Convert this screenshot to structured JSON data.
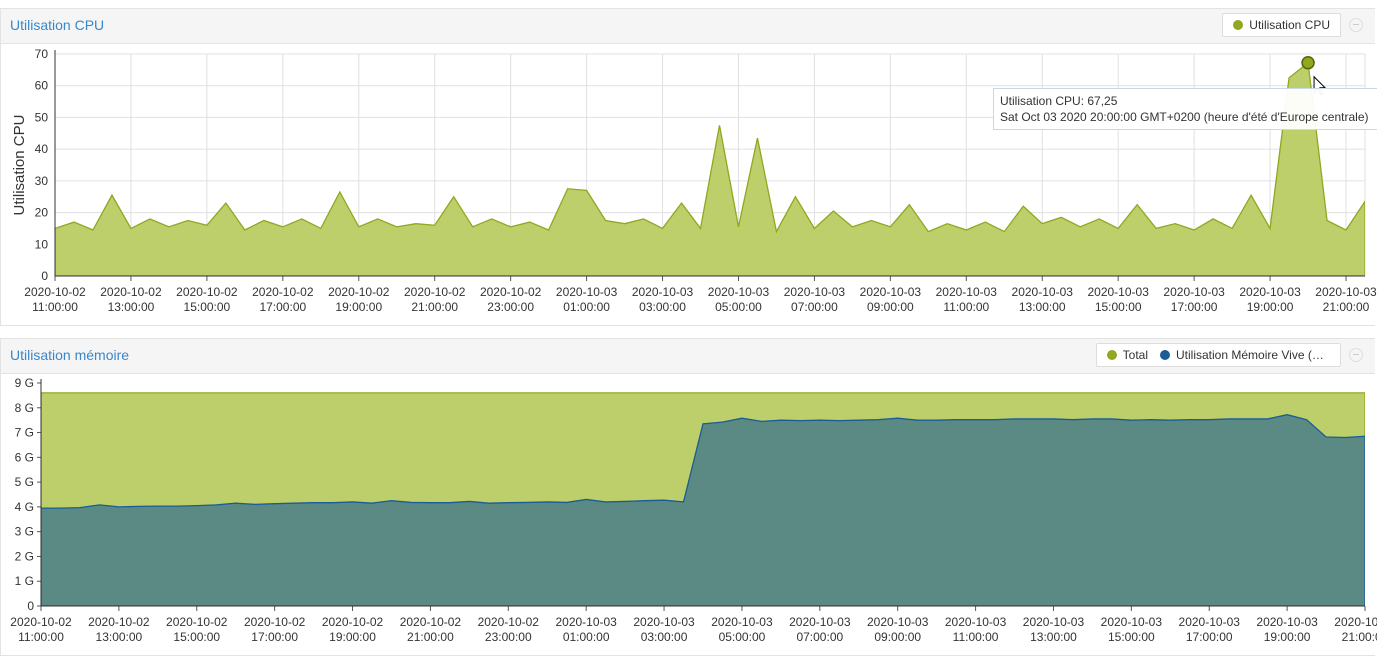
{
  "chart_data": [
    {
      "type": "area",
      "title": "Utilisation CPU",
      "y_label": "Utilisation CPU",
      "x": [
        "2020-10-02 11:00:00",
        "2020-10-02 11:30:00",
        "2020-10-02 12:00:00",
        "2020-10-02 12:30:00",
        "2020-10-02 13:00:00",
        "2020-10-02 13:30:00",
        "2020-10-02 14:00:00",
        "2020-10-02 14:30:00",
        "2020-10-02 15:00:00",
        "2020-10-02 15:30:00",
        "2020-10-02 16:00:00",
        "2020-10-02 16:30:00",
        "2020-10-02 17:00:00",
        "2020-10-02 17:30:00",
        "2020-10-02 18:00:00",
        "2020-10-02 18:30:00",
        "2020-10-02 19:00:00",
        "2020-10-02 19:30:00",
        "2020-10-02 20:00:00",
        "2020-10-02 20:30:00",
        "2020-10-02 21:00:00",
        "2020-10-02 21:30:00",
        "2020-10-02 22:00:00",
        "2020-10-02 22:30:00",
        "2020-10-02 23:00:00",
        "2020-10-02 23:30:00",
        "2020-10-03 00:00:00",
        "2020-10-03 00:30:00",
        "2020-10-03 01:00:00",
        "2020-10-03 01:30:00",
        "2020-10-03 02:00:00",
        "2020-10-03 02:30:00",
        "2020-10-03 03:00:00",
        "2020-10-03 03:30:00",
        "2020-10-03 04:00:00",
        "2020-10-03 04:30:00",
        "2020-10-03 05:00:00",
        "2020-10-03 05:30:00",
        "2020-10-03 06:00:00",
        "2020-10-03 06:30:00",
        "2020-10-03 07:00:00",
        "2020-10-03 07:30:00",
        "2020-10-03 08:00:00",
        "2020-10-03 08:30:00",
        "2020-10-03 09:00:00",
        "2020-10-03 09:30:00",
        "2020-10-03 10:00:00",
        "2020-10-03 10:30:00",
        "2020-10-03 11:00:00",
        "2020-10-03 11:30:00",
        "2020-10-03 12:00:00",
        "2020-10-03 12:30:00",
        "2020-10-03 13:00:00",
        "2020-10-03 13:30:00",
        "2020-10-03 14:00:00",
        "2020-10-03 14:30:00",
        "2020-10-03 15:00:00",
        "2020-10-03 15:30:00",
        "2020-10-03 16:00:00",
        "2020-10-03 16:30:00",
        "2020-10-03 17:00:00",
        "2020-10-03 17:30:00",
        "2020-10-03 18:00:00",
        "2020-10-03 18:30:00",
        "2020-10-03 19:00:00",
        "2020-10-03 19:30:00",
        "2020-10-03 20:00:00",
        "2020-10-03 20:30:00",
        "2020-10-03 21:00:00",
        "2020-10-03 21:30:00"
      ],
      "series": [
        {
          "name": "Utilisation CPU",
          "color": "#8fa81f",
          "fill": "#bccf6a",
          "values": [
            15,
            17,
            14.5,
            25.5,
            15,
            18,
            15.5,
            17.5,
            16,
            23,
            14.5,
            17.5,
            15.5,
            18,
            15,
            26.5,
            15.5,
            18,
            15.5,
            16.5,
            16,
            25,
            15.5,
            18,
            15.5,
            17,
            14.5,
            27.5,
            27,
            17.5,
            16.5,
            18,
            15,
            23,
            15,
            47.5,
            15.5,
            43.5,
            14,
            25,
            15,
            20.5,
            15.5,
            17.5,
            15.5,
            22.5,
            14,
            16.5,
            14.5,
            17,
            14,
            22,
            16.5,
            18.5,
            15.5,
            18,
            15,
            22.5,
            15,
            16.5,
            14.5,
            18,
            15,
            25.5,
            15,
            62.5,
            67.25,
            17.5,
            14.5,
            23.5
          ]
        }
      ],
      "xticks": [
        "2020-10-02 11:00:00",
        "2020-10-02 13:00:00",
        "2020-10-02 15:00:00",
        "2020-10-02 17:00:00",
        "2020-10-02 19:00:00",
        "2020-10-02 21:00:00",
        "2020-10-02 23:00:00",
        "2020-10-03 01:00:00",
        "2020-10-03 03:00:00",
        "2020-10-03 05:00:00",
        "2020-10-03 07:00:00",
        "2020-10-03 09:00:00",
        "2020-10-03 11:00:00",
        "2020-10-03 13:00:00",
        "2020-10-03 15:00:00",
        "2020-10-03 17:00:00",
        "2020-10-03 19:00:00",
        "2020-10-03 21:00:00"
      ],
      "ylim": [
        0,
        70
      ],
      "yticks": [
        0,
        10,
        20,
        30,
        40,
        50,
        60,
        70
      ],
      "grid": true,
      "legend": "top-right",
      "tooltip": {
        "lines": [
          "Utilisation CPU: 67,25",
          "Sat Oct 03 2020 20:00:00 GMT+0200 (heure d'été d'Europe centrale)"
        ]
      }
    },
    {
      "type": "area",
      "title": "Utilisation mémoire",
      "x": [
        "2020-10-02 11:00:00",
        "2020-10-02 11:30:00",
        "2020-10-02 12:00:00",
        "2020-10-02 12:30:00",
        "2020-10-02 13:00:00",
        "2020-10-02 13:30:00",
        "2020-10-02 14:00:00",
        "2020-10-02 14:30:00",
        "2020-10-02 15:00:00",
        "2020-10-02 15:30:00",
        "2020-10-02 16:00:00",
        "2020-10-02 16:30:00",
        "2020-10-02 17:00:00",
        "2020-10-02 17:30:00",
        "2020-10-02 18:00:00",
        "2020-10-02 18:30:00",
        "2020-10-02 19:00:00",
        "2020-10-02 19:30:00",
        "2020-10-02 20:00:00",
        "2020-10-02 20:30:00",
        "2020-10-02 21:00:00",
        "2020-10-02 21:30:00",
        "2020-10-02 22:00:00",
        "2020-10-02 22:30:00",
        "2020-10-02 23:00:00",
        "2020-10-02 23:30:00",
        "2020-10-03 00:00:00",
        "2020-10-03 00:30:00",
        "2020-10-03 01:00:00",
        "2020-10-03 01:30:00",
        "2020-10-03 02:00:00",
        "2020-10-03 02:30:00",
        "2020-10-03 03:00:00",
        "2020-10-03 03:30:00",
        "2020-10-03 04:00:00",
        "2020-10-03 04:30:00",
        "2020-10-03 05:00:00",
        "2020-10-03 05:30:00",
        "2020-10-03 06:00:00",
        "2020-10-03 06:30:00",
        "2020-10-03 07:00:00",
        "2020-10-03 07:30:00",
        "2020-10-03 08:00:00",
        "2020-10-03 08:30:00",
        "2020-10-03 09:00:00",
        "2020-10-03 09:30:00",
        "2020-10-03 10:00:00",
        "2020-10-03 10:30:00",
        "2020-10-03 11:00:00",
        "2020-10-03 11:30:00",
        "2020-10-03 12:00:00",
        "2020-10-03 12:30:00",
        "2020-10-03 13:00:00",
        "2020-10-03 13:30:00",
        "2020-10-03 14:00:00",
        "2020-10-03 14:30:00",
        "2020-10-03 15:00:00",
        "2020-10-03 15:30:00",
        "2020-10-03 16:00:00",
        "2020-10-03 16:30:00",
        "2020-10-03 17:00:00",
        "2020-10-03 17:30:00",
        "2020-10-03 18:00:00",
        "2020-10-03 18:30:00",
        "2020-10-03 19:00:00",
        "2020-10-03 19:30:00",
        "2020-10-03 20:00:00",
        "2020-10-03 20:30:00",
        "2020-10-03 21:00:00"
      ],
      "series": [
        {
          "name": "Total",
          "color": "#8fa81f",
          "fill": "#bccf6a",
          "values": [
            8.6,
            8.6,
            8.6,
            8.6,
            8.6,
            8.6,
            8.6,
            8.6,
            8.6,
            8.6,
            8.6,
            8.6,
            8.6,
            8.6,
            8.6,
            8.6,
            8.6,
            8.6,
            8.6,
            8.6,
            8.6,
            8.6,
            8.6,
            8.6,
            8.6,
            8.6,
            8.6,
            8.6,
            8.6,
            8.6,
            8.6,
            8.6,
            8.6,
            8.6,
            8.6,
            8.6,
            8.6,
            8.6,
            8.6,
            8.6,
            8.6,
            8.6,
            8.6,
            8.6,
            8.6,
            8.6,
            8.6,
            8.6,
            8.6,
            8.6,
            8.6,
            8.6,
            8.6,
            8.6,
            8.6,
            8.6,
            8.6,
            8.6,
            8.6,
            8.6,
            8.6,
            8.6,
            8.6,
            8.6,
            8.6,
            8.6,
            8.6,
            8.6,
            8.6
          ]
        },
        {
          "name": "Utilisation Mémoire Vive (RAM)",
          "color": "#1a5c96",
          "fill": "#5b8a84",
          "values": [
            3.95,
            3.95,
            3.97,
            4.08,
            4.0,
            4.02,
            4.03,
            4.03,
            4.05,
            4.08,
            4.15,
            4.1,
            4.13,
            4.15,
            4.17,
            4.17,
            4.2,
            4.15,
            4.25,
            4.18,
            4.17,
            4.17,
            4.22,
            4.15,
            4.17,
            4.18,
            4.2,
            4.18,
            4.3,
            4.2,
            4.22,
            4.25,
            4.27,
            4.2,
            7.35,
            7.42,
            7.58,
            7.45,
            7.5,
            7.48,
            7.5,
            7.48,
            7.5,
            7.52,
            7.58,
            7.5,
            7.5,
            7.52,
            7.52,
            7.52,
            7.55,
            7.55,
            7.55,
            7.52,
            7.55,
            7.55,
            7.5,
            7.52,
            7.5,
            7.52,
            7.52,
            7.55,
            7.55,
            7.55,
            7.72,
            7.52,
            6.82,
            6.8,
            6.85
          ]
        }
      ],
      "xticks": [
        "2020-10-02 11:00:00",
        "2020-10-02 13:00:00",
        "2020-10-02 15:00:00",
        "2020-10-02 17:00:00",
        "2020-10-02 19:00:00",
        "2020-10-02 21:00:00",
        "2020-10-02 23:00:00",
        "2020-10-03 01:00:00",
        "2020-10-03 03:00:00",
        "2020-10-03 05:00:00",
        "2020-10-03 07:00:00",
        "2020-10-03 09:00:00",
        "2020-10-03 11:00:00",
        "2020-10-03 13:00:00",
        "2020-10-03 15:00:00",
        "2020-10-03 17:00:00",
        "2020-10-03 19:00:00",
        "2020-10-03 21:00:00"
      ],
      "ylim": [
        0,
        9
      ],
      "yticks": [
        0,
        {
          "value": 1,
          "label": "1 G"
        },
        {
          "value": 2,
          "label": "2 G"
        },
        {
          "value": 3,
          "label": "3 G"
        },
        {
          "value": 4,
          "label": "4 G"
        },
        {
          "value": 5,
          "label": "5 G"
        },
        {
          "value": 6,
          "label": "6 G"
        },
        {
          "value": 7,
          "label": "7 G"
        },
        {
          "value": 8,
          "label": "8 G"
        },
        {
          "value": 9,
          "label": "9 G"
        }
      ],
      "grid": false,
      "legend": "top-right"
    }
  ]
}
